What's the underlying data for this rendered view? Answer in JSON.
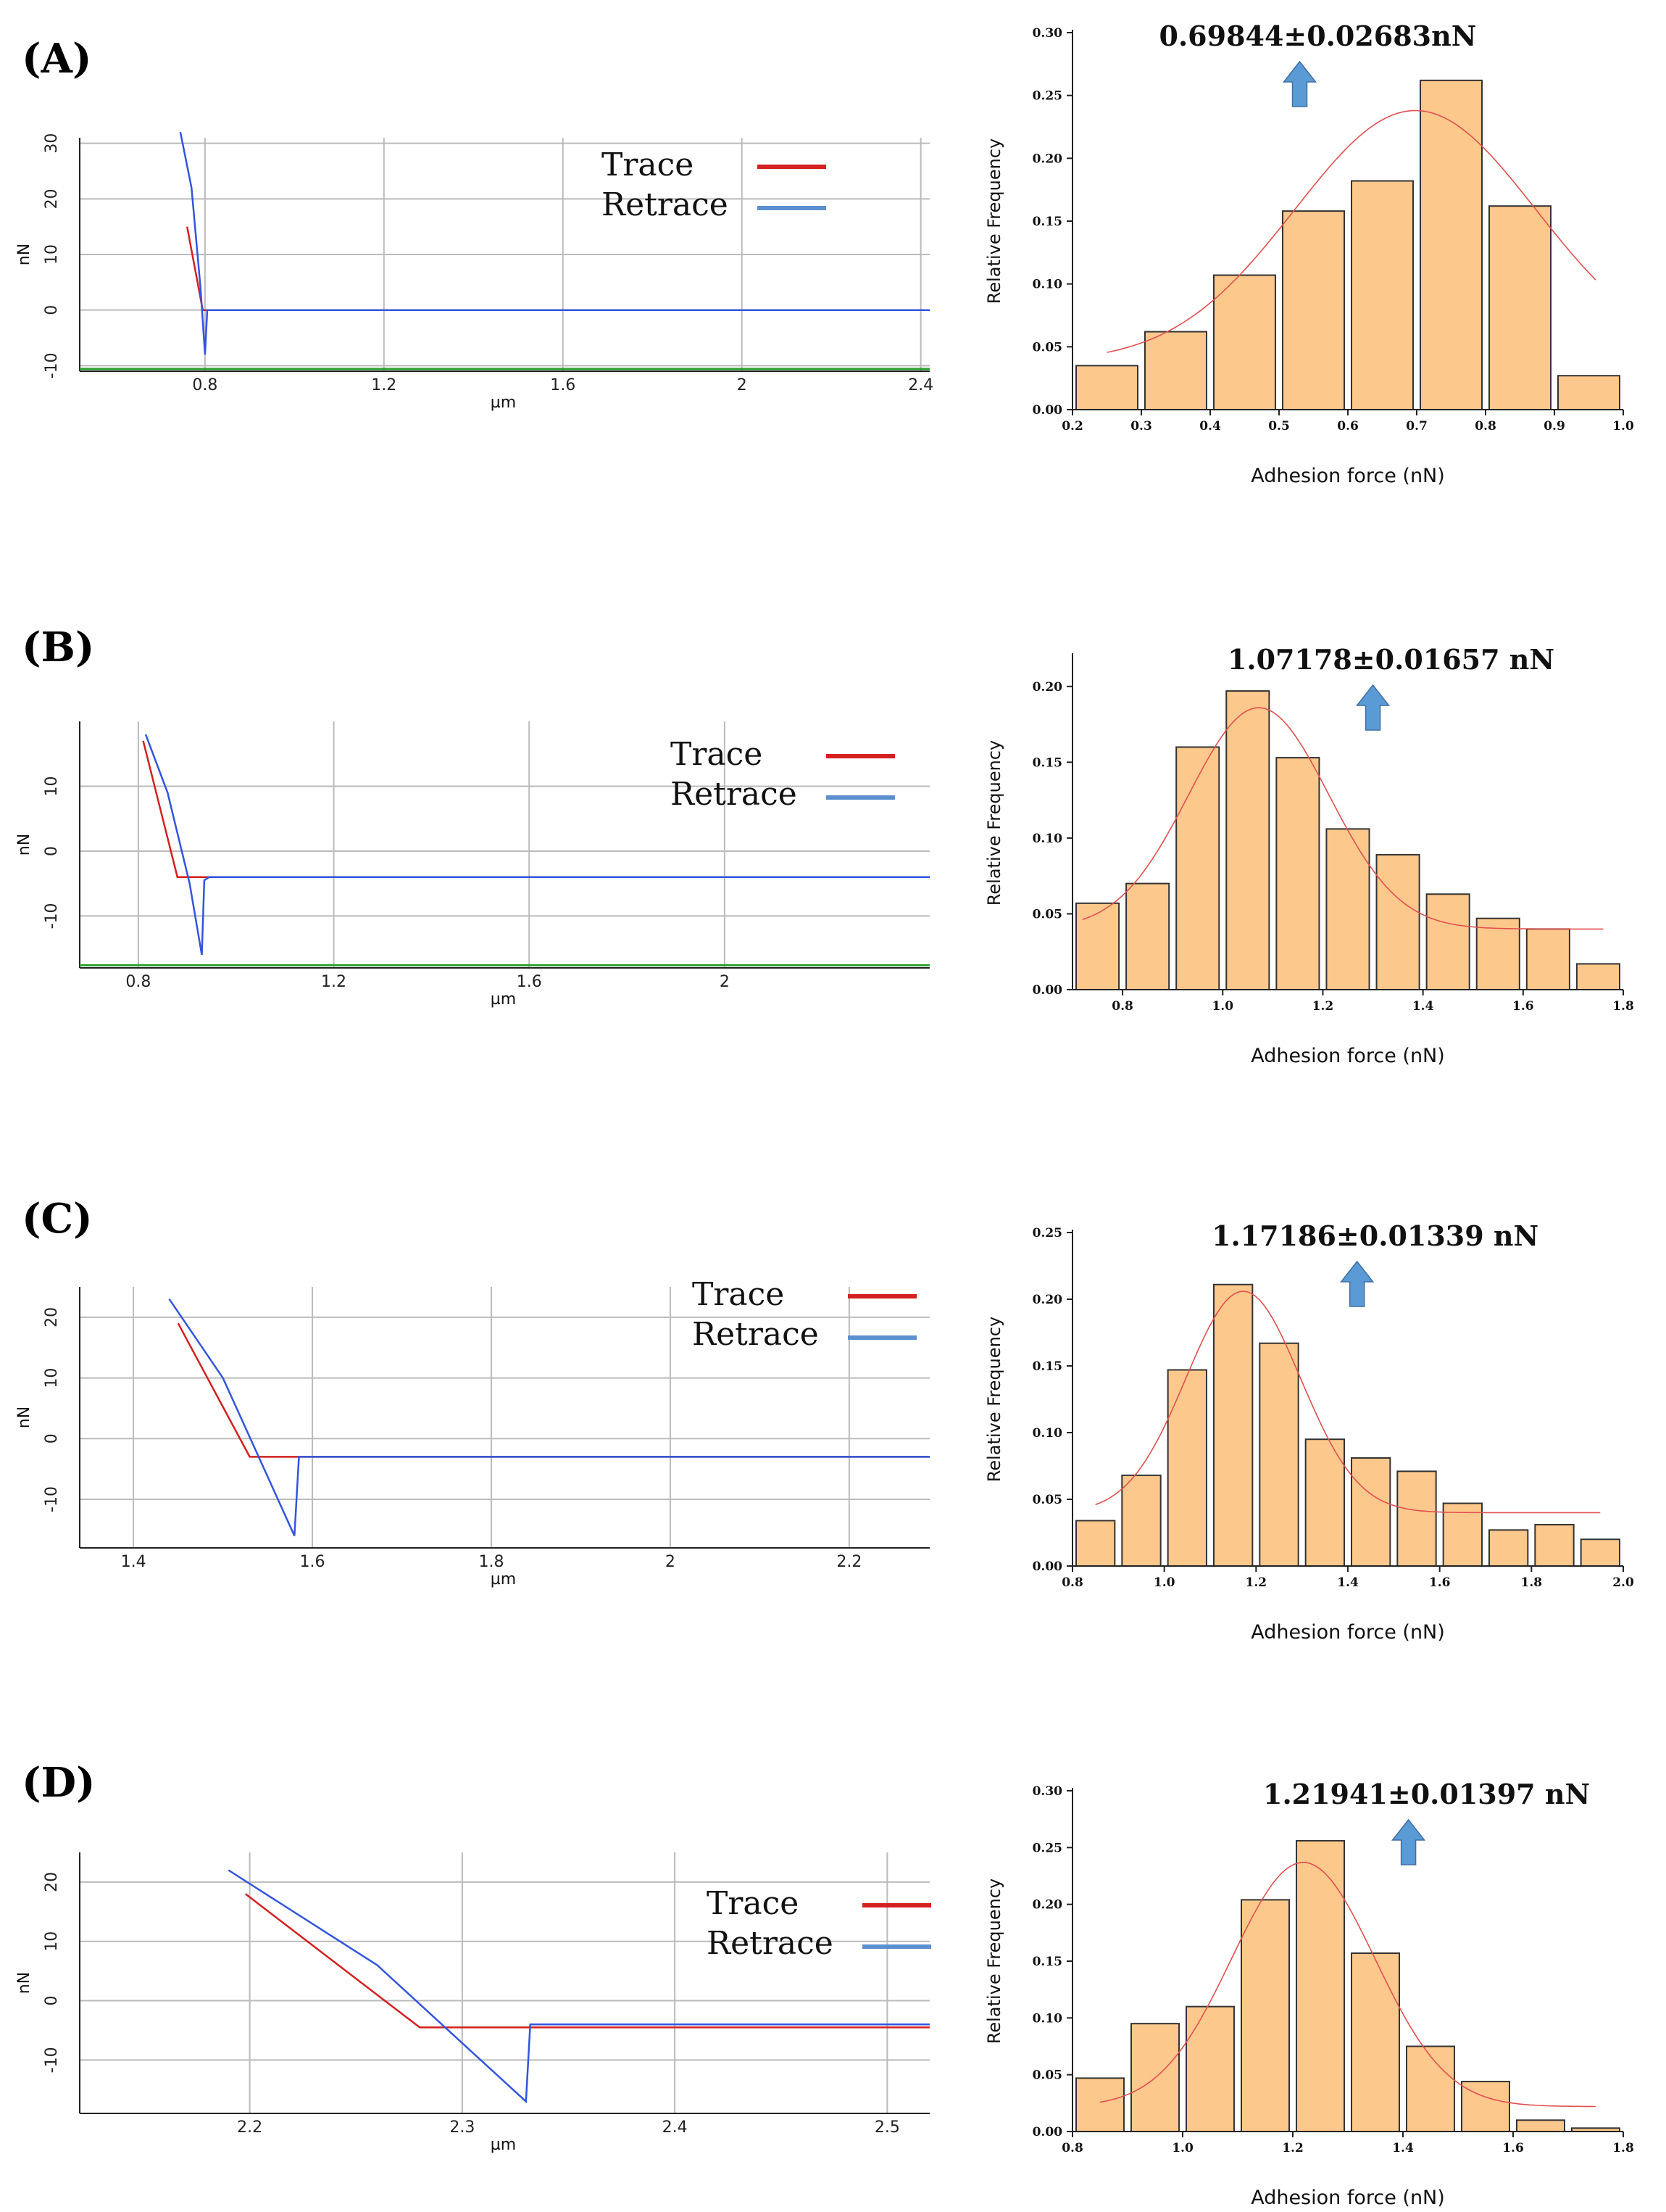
{
  "colors": {
    "trace": "#d42020",
    "retrace": "#3355dd",
    "retrace_legend": "#5b8fd0",
    "baseline": "#2ca02c",
    "bar_fill": "#fcc88c",
    "bar_stroke": "#333333",
    "fit": "#e05050",
    "arrow": "#5b9bd5",
    "grid": "#bbbbbb"
  },
  "legend": {
    "trace": "Trace",
    "retrace": "Retrace"
  },
  "chart_data": [
    {
      "id": "force-curve-a",
      "panel": "(A)",
      "type": "line",
      "xlabel": "µm",
      "ylabel": "nN",
      "xlim": [
        0.52,
        2.42
      ],
      "ylim": [
        -11,
        31
      ],
      "xticks": [
        0.8,
        1.2,
        1.6,
        2,
        2.4
      ],
      "xtick_labels": [
        "0.8",
        "1.2",
        "1.6",
        "2",
        "2.4"
      ],
      "yticks": [
        30,
        20,
        10,
        0,
        -10
      ],
      "ytick_labels": [
        "30",
        "20",
        "10",
        "0",
        "-10"
      ],
      "baseline_y": -10.6,
      "series": [
        {
          "name": "Trace",
          "x": [
            0.76,
            0.795,
            0.9,
            1.2,
            1.6,
            2.0,
            2.4
          ],
          "y": [
            15,
            0,
            0,
            0,
            0,
            0,
            0
          ]
        },
        {
          "name": "Retrace",
          "x": [
            0.745,
            0.77,
            0.79,
            0.8,
            0.805,
            1.2,
            1.6,
            2.0,
            2.42
          ],
          "y": [
            32,
            22,
            4,
            -8,
            0,
            0,
            0,
            0,
            0
          ]
        }
      ]
    },
    {
      "id": "histogram-a",
      "type": "bar",
      "title": "0.69844±0.02683nN",
      "xlabel": "Adhesion force (nN)",
      "ylabel": "Relative Frequency",
      "xlim": [
        0.2,
        1.0
      ],
      "ylim": [
        0,
        0.3
      ],
      "xticks": [
        "0.2",
        "0.3",
        "0.4",
        "0.5",
        "0.6",
        "0.7",
        "0.8",
        "0.9",
        "1.0"
      ],
      "yticks": [
        "0.00",
        "0.05",
        "0.10",
        "0.15",
        "0.20",
        "0.25",
        "0.30"
      ],
      "bin_edges": [
        0.2,
        0.3,
        0.4,
        0.5,
        0.6,
        0.7,
        0.8,
        0.9,
        1.0
      ],
      "values": [
        0.035,
        0.062,
        0.107,
        0.158,
        0.182,
        0.262,
        0.162,
        0.027
      ],
      "fit": {
        "mean": 0.698,
        "sigma": 0.175,
        "amp": 0.2,
        "base": 0.038,
        "range": [
          0.25,
          0.96
        ]
      },
      "arrow_x": 0.53
    },
    {
      "id": "force-curve-b",
      "panel": "(B)",
      "type": "line",
      "xlabel": "µm",
      "ylabel": "nN",
      "xlim": [
        0.68,
        2.42
      ],
      "ylim": [
        -18,
        20
      ],
      "xticks": [
        0.8,
        1.2,
        1.6,
        2
      ],
      "xtick_labels": [
        "0.8",
        "1.2",
        "1.6",
        "2"
      ],
      "yticks": [
        10,
        0,
        -10
      ],
      "ytick_labels": [
        "10",
        "0",
        "-10"
      ],
      "baseline_y": -17.6,
      "series": [
        {
          "name": "Trace",
          "x": [
            0.81,
            0.88,
            0.93,
            1.2,
            1.6,
            2.0,
            2.42
          ],
          "y": [
            17,
            -4,
            -4,
            -4,
            -4,
            -4,
            -4
          ]
        },
        {
          "name": "Retrace",
          "x": [
            0.815,
            0.86,
            0.905,
            0.93,
            0.935,
            0.945,
            1.2,
            1.6,
            2.0,
            2.42
          ],
          "y": [
            18,
            9,
            -5,
            -16,
            -4.5,
            -4,
            -4,
            -4,
            -4,
            -4
          ]
        }
      ]
    },
    {
      "id": "histogram-b",
      "type": "bar",
      "title": "1.07178±0.01657 nN",
      "xlabel": "Adhesion force (nN)",
      "ylabel": "Relative Frequency",
      "xlim": [
        0.7,
        1.8
      ],
      "ylim": [
        0,
        0.22
      ],
      "xticks": [
        "0.8",
        "1.0",
        "1.2",
        "1.4",
        "1.6",
        "1.8"
      ],
      "yticks": [
        "0.00",
        "0.05",
        "0.10",
        "0.15",
        "0.20"
      ],
      "bin_edges": [
        0.7,
        0.8,
        0.9,
        1.0,
        1.1,
        1.2,
        1.3,
        1.4,
        1.5,
        1.6,
        1.7,
        1.8
      ],
      "values": [
        0.057,
        0.07,
        0.16,
        0.197,
        0.153,
        0.106,
        0.089,
        0.063,
        0.047,
        0.04,
        0.017
      ],
      "fit": {
        "mean": 1.072,
        "sigma": 0.14,
        "amp": 0.146,
        "base": 0.04,
        "range": [
          0.72,
          1.76
        ]
      },
      "arrow_x": 1.3
    },
    {
      "id": "force-curve-c",
      "panel": "(C)",
      "type": "line",
      "xlabel": "µm",
      "ylabel": "nN",
      "xlim": [
        1.34,
        2.29
      ],
      "ylim": [
        -18,
        25
      ],
      "xticks": [
        1.4,
        1.6,
        1.8,
        2,
        2.2
      ],
      "xtick_labels": [
        "1.4",
        "1.6",
        "1.8",
        "2",
        "2.2"
      ],
      "yticks": [
        20,
        10,
        0,
        -10
      ],
      "ytick_labels": [
        "20",
        "10",
        "0",
        "-10"
      ],
      "baseline_y": null,
      "series": [
        {
          "name": "Trace",
          "x": [
            1.45,
            1.53,
            1.6,
            1.8,
            2.0,
            2.29
          ],
          "y": [
            19,
            -3,
            -3,
            -3,
            -3,
            -3
          ]
        },
        {
          "name": "Retrace",
          "x": [
            1.44,
            1.5,
            1.58,
            1.585,
            1.6,
            1.8,
            2.0,
            2.29
          ],
          "y": [
            23,
            10,
            -16,
            -3,
            -3,
            -3,
            -3,
            -3
          ]
        }
      ]
    },
    {
      "id": "histogram-c",
      "type": "bar",
      "title": "1.17186±0.01339 nN",
      "xlabel": "Adhesion force (nN)",
      "ylabel": "Relative Frequency",
      "xlim": [
        0.8,
        2.0
      ],
      "ylim": [
        0,
        0.25
      ],
      "xticks": [
        "0.8",
        "1.0",
        "1.2",
        "1.4",
        "1.6",
        "1.8",
        "2.0"
      ],
      "yticks": [
        "0.00",
        "0.05",
        "0.10",
        "0.15",
        "0.20",
        "0.25"
      ],
      "bin_edges": [
        0.8,
        0.9,
        1.0,
        1.1,
        1.2,
        1.3,
        1.4,
        1.5,
        1.6,
        1.7,
        1.8,
        1.9,
        2.0
      ],
      "values": [
        0.034,
        0.068,
        0.147,
        0.211,
        0.167,
        0.095,
        0.081,
        0.071,
        0.047,
        0.027,
        0.031,
        0.02
      ],
      "fit": {
        "mean": 1.172,
        "sigma": 0.125,
        "amp": 0.166,
        "base": 0.04,
        "range": [
          0.85,
          1.95
        ]
      },
      "arrow_x": 1.42
    },
    {
      "id": "force-curve-d",
      "panel": "(D)",
      "type": "line",
      "xlabel": "µm",
      "ylabel": "nN",
      "xlim": [
        2.12,
        2.52
      ],
      "ylim": [
        -19,
        25
      ],
      "xticks": [
        2.2,
        2.3,
        2.4,
        2.5
      ],
      "xtick_labels": [
        "2.2",
        "2.3",
        "2.4",
        "2.5"
      ],
      "yticks": [
        20,
        10,
        0,
        -10
      ],
      "ytick_labels": [
        "20",
        "10",
        "0",
        "-10"
      ],
      "baseline_y": null,
      "series": [
        {
          "name": "Trace",
          "x": [
            2.198,
            2.28,
            2.3,
            2.4,
            2.52
          ],
          "y": [
            18,
            -4.5,
            -4.5,
            -4.5,
            -4.5
          ]
        },
        {
          "name": "Retrace",
          "x": [
            2.19,
            2.26,
            2.33,
            2.332,
            2.34,
            2.4,
            2.52
          ],
          "y": [
            22,
            6,
            -17,
            -4,
            -4,
            -4,
            -4
          ]
        }
      ]
    },
    {
      "id": "histogram-d",
      "type": "bar",
      "title": "1.21941±0.01397 nN",
      "xlabel": "Adhesion force (nN)",
      "ylabel": "Relative Frequency",
      "xlim": [
        0.8,
        1.8
      ],
      "ylim": [
        0,
        0.3
      ],
      "xticks": [
        "0.8",
        "1.0",
        "1.2",
        "1.4",
        "1.6",
        "1.8"
      ],
      "yticks": [
        "0.00",
        "0.05",
        "0.10",
        "0.15",
        "0.20",
        "0.25",
        "0.30"
      ],
      "bin_edges": [
        0.8,
        0.9,
        1.0,
        1.1,
        1.2,
        1.3,
        1.4,
        1.5,
        1.6,
        1.7,
        1.8
      ],
      "values": [
        0.047,
        0.095,
        0.11,
        0.204,
        0.256,
        0.157,
        0.075,
        0.044,
        0.01,
        0.003
      ],
      "fit": {
        "mean": 1.219,
        "sigma": 0.13,
        "amp": 0.215,
        "base": 0.022,
        "range": [
          0.85,
          1.75
        ]
      },
      "arrow_x": 1.41
    }
  ]
}
